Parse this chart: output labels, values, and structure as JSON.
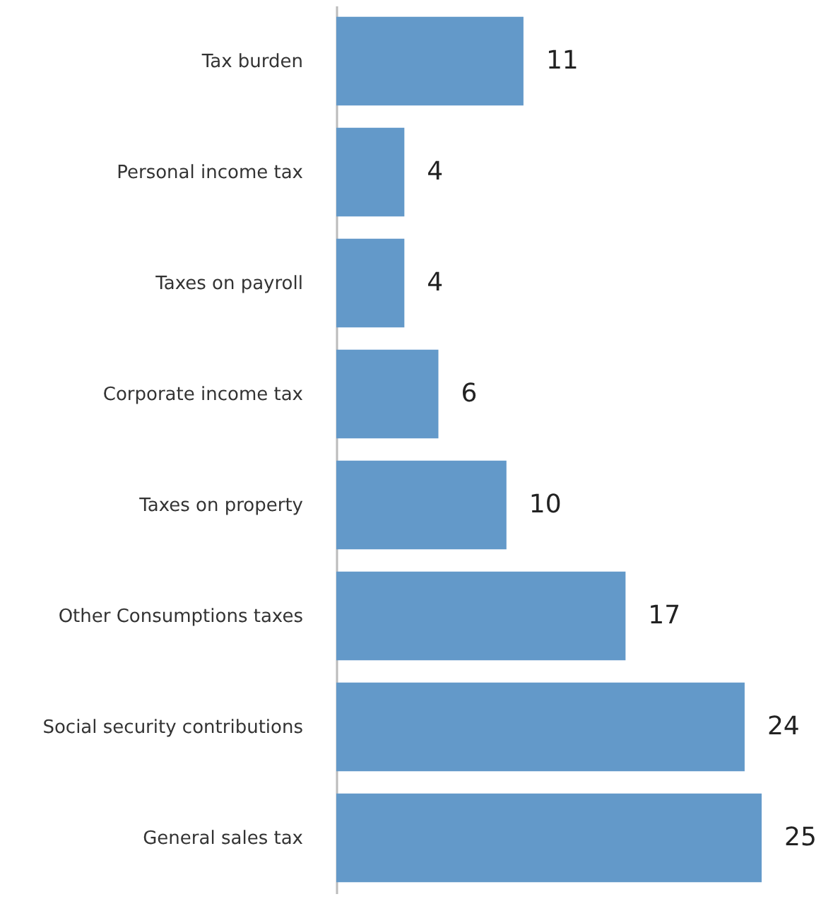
{
  "chart_data": {
    "type": "bar",
    "orientation": "horizontal",
    "categories": [
      "Tax burden",
      "Personal income tax",
      "Taxes on payroll",
      "Corporate income tax",
      "Taxes on property",
      "Other Consumptions taxes",
      "Social security contributions",
      "General sales tax"
    ],
    "values": [
      11,
      4,
      4,
      6,
      10,
      17,
      24,
      25
    ],
    "color": "#6399c9",
    "data_labels": true
  }
}
